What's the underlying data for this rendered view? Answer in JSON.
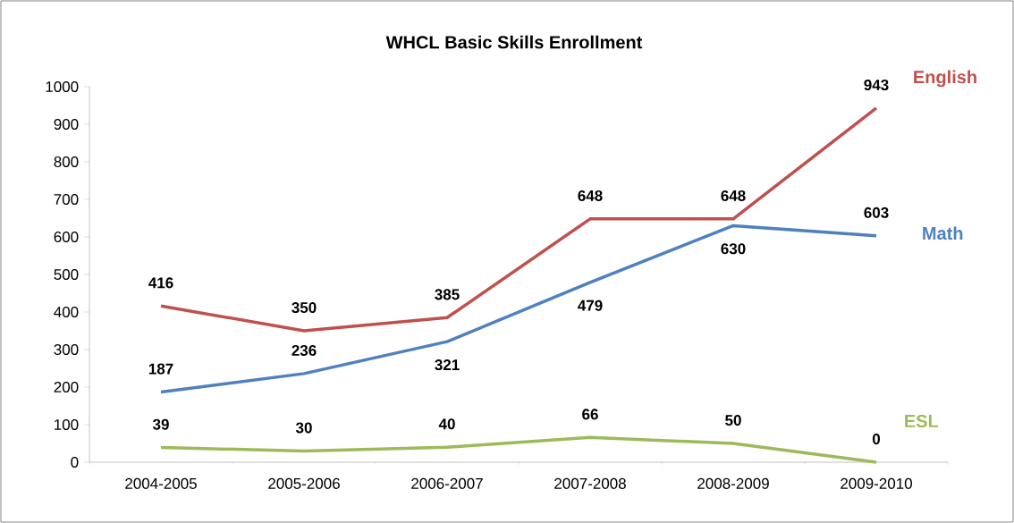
{
  "chart_data": {
    "type": "line",
    "title": "WHCL Basic Skills Enrollment",
    "categories": [
      "2004-2005",
      "2005-2006",
      "2006-2007",
      "2007-2008",
      "2008-2009",
      "2009-2010"
    ],
    "series": [
      {
        "name": "English",
        "color": "#c0504d",
        "values": [
          416,
          350,
          385,
          648,
          648,
          943
        ]
      },
      {
        "name": "Math",
        "color": "#4f81bd",
        "values": [
          187,
          236,
          321,
          479,
          630,
          603
        ]
      },
      {
        "name": "ESL",
        "color": "#9bbb59",
        "values": [
          39,
          30,
          40,
          66,
          50,
          0
        ]
      }
    ],
    "ylim": [
      0,
      1000
    ],
    "yticks": [
      0,
      100,
      200,
      300,
      400,
      500,
      600,
      700,
      800,
      900,
      1000
    ],
    "data_labels": true,
    "grid": false,
    "marker": "none",
    "line_style": "solid"
  }
}
